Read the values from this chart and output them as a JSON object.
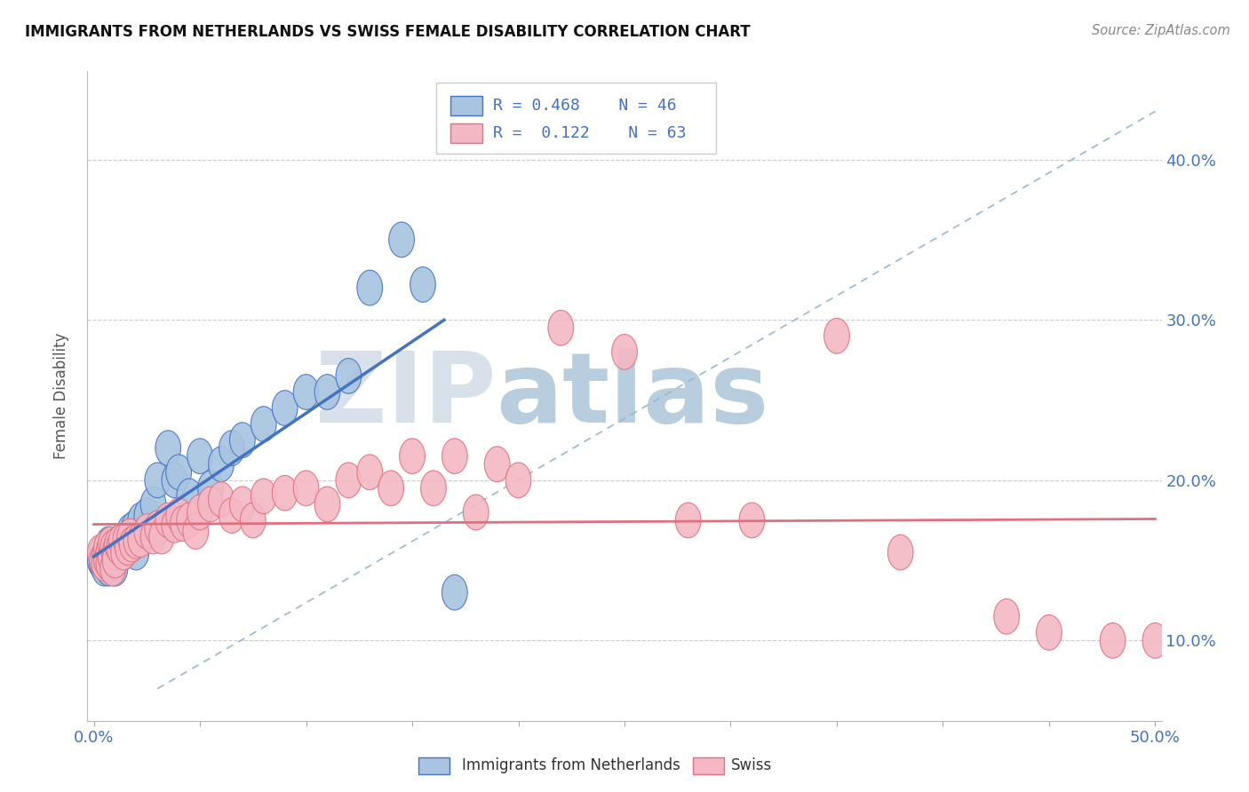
{
  "title": "IMMIGRANTS FROM NETHERLANDS VS SWISS FEMALE DISABILITY CORRELATION CHART",
  "source": "Source: ZipAtlas.com",
  "ylabel": "Female Disability",
  "xlim": [
    0.0,
    0.5
  ],
  "ylim": [
    0.05,
    0.45
  ],
  "yticks": [
    0.1,
    0.2,
    0.3,
    0.4
  ],
  "ytick_labels": [
    "10.0%",
    "20.0%",
    "30.0%",
    "40.0%"
  ],
  "xtick_labels_show": [
    "0.0%",
    "50.0%"
  ],
  "legend_r1": "R = 0.468",
  "legend_n1": "N = 46",
  "legend_r2": "R =  0.122",
  "legend_n2": "N = 63",
  "color_netherlands": "#a8c4e0",
  "color_swiss": "#f4b8c4",
  "color_netherlands_line": "#4472c4",
  "color_swiss_line": "#e07080",
  "color_text_blue": "#4472c4",
  "watermark_zip": "ZIP",
  "watermark_atlas": "atlas",
  "watermark_color_zip": "#c8d4e0",
  "watermark_color_atlas": "#9ab8d0",
  "nl_x": [
    0.003,
    0.004,
    0.004,
    0.005,
    0.006,
    0.006,
    0.007,
    0.007,
    0.008,
    0.008,
    0.009,
    0.009,
    0.01,
    0.01,
    0.011,
    0.012,
    0.013,
    0.014,
    0.015,
    0.016,
    0.017,
    0.018,
    0.019,
    0.02,
    0.022,
    0.025,
    0.028,
    0.03,
    0.035,
    0.038,
    0.04,
    0.045,
    0.05,
    0.055,
    0.06,
    0.065,
    0.07,
    0.08,
    0.09,
    0.1,
    0.11,
    0.12,
    0.13,
    0.145,
    0.155,
    0.17
  ],
  "nl_y": [
    0.15,
    0.148,
    0.155,
    0.145,
    0.152,
    0.148,
    0.16,
    0.145,
    0.155,
    0.15,
    0.158,
    0.148,
    0.153,
    0.145,
    0.16,
    0.157,
    0.162,
    0.155,
    0.163,
    0.158,
    0.168,
    0.165,
    0.17,
    0.155,
    0.175,
    0.178,
    0.185,
    0.2,
    0.22,
    0.2,
    0.205,
    0.19,
    0.215,
    0.195,
    0.21,
    0.22,
    0.225,
    0.235,
    0.245,
    0.255,
    0.255,
    0.265,
    0.32,
    0.35,
    0.322,
    0.13
  ],
  "sw_x": [
    0.003,
    0.004,
    0.005,
    0.005,
    0.006,
    0.006,
    0.007,
    0.007,
    0.008,
    0.008,
    0.009,
    0.009,
    0.01,
    0.01,
    0.011,
    0.012,
    0.013,
    0.014,
    0.015,
    0.016,
    0.017,
    0.018,
    0.02,
    0.022,
    0.025,
    0.028,
    0.03,
    0.032,
    0.035,
    0.038,
    0.04,
    0.042,
    0.045,
    0.048,
    0.05,
    0.055,
    0.06,
    0.065,
    0.07,
    0.075,
    0.08,
    0.09,
    0.1,
    0.11,
    0.12,
    0.13,
    0.14,
    0.15,
    0.16,
    0.17,
    0.18,
    0.19,
    0.2,
    0.22,
    0.25,
    0.28,
    0.31,
    0.35,
    0.38,
    0.43,
    0.45,
    0.48,
    0.5
  ],
  "sw_y": [
    0.155,
    0.15,
    0.152,
    0.148,
    0.158,
    0.15,
    0.155,
    0.148,
    0.16,
    0.152,
    0.158,
    0.145,
    0.155,
    0.15,
    0.16,
    0.158,
    0.162,
    0.155,
    0.163,
    0.158,
    0.165,
    0.16,
    0.162,
    0.163,
    0.168,
    0.165,
    0.17,
    0.165,
    0.175,
    0.172,
    0.178,
    0.173,
    0.175,
    0.168,
    0.18,
    0.185,
    0.188,
    0.178,
    0.185,
    0.175,
    0.19,
    0.192,
    0.195,
    0.185,
    0.2,
    0.205,
    0.195,
    0.215,
    0.195,
    0.215,
    0.18,
    0.21,
    0.2,
    0.295,
    0.28,
    0.175,
    0.175,
    0.29,
    0.155,
    0.115,
    0.105,
    0.1,
    0.1
  ]
}
